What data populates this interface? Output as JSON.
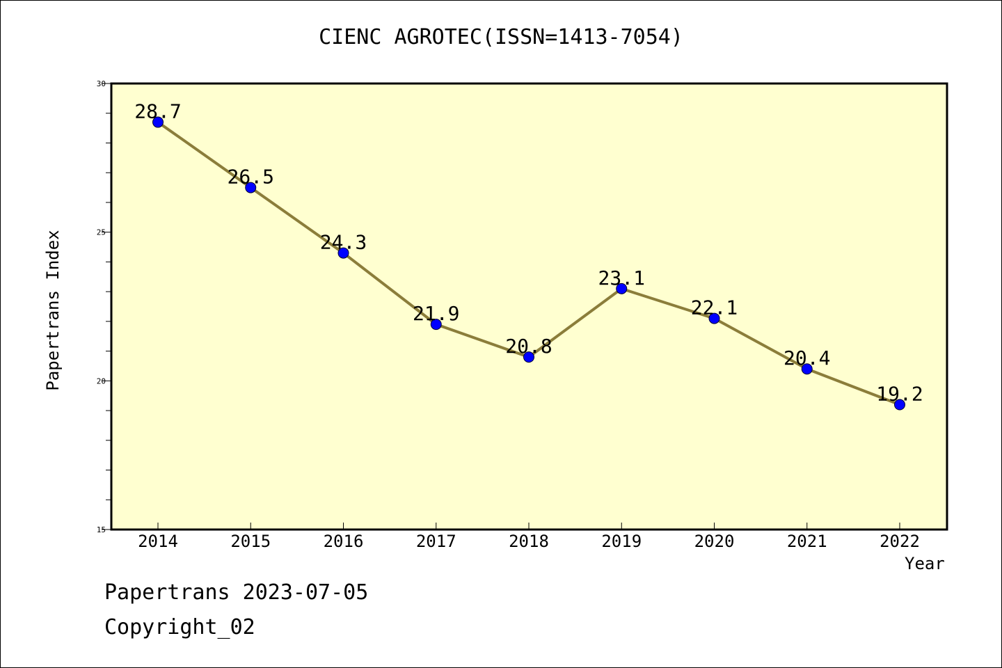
{
  "chart_data": {
    "type": "line",
    "title": "CIENC AGROTEC(ISSN=1413-7054)",
    "xlabel": "Year",
    "ylabel": "Papertrans Index",
    "categories": [
      "2014",
      "2015",
      "2016",
      "2017",
      "2018",
      "2019",
      "2020",
      "2021",
      "2022"
    ],
    "series": [
      {
        "values": [
          28.7,
          26.5,
          24.3,
          21.9,
          20.8,
          23.1,
          22.1,
          20.4,
          19.2
        ]
      }
    ],
    "data_labels": [
      "28.7",
      "26.5",
      "24.3",
      "21.9",
      "20.8",
      "23.1",
      "22.1",
      "20.4",
      "19.2"
    ],
    "ylim": [
      15,
      30
    ],
    "y_ticks": [
      "15",
      "20",
      "25",
      "30"
    ],
    "grid": false,
    "colors": {
      "plot_background": "#ffffd0",
      "line": "#8b7d3a",
      "marker": "#0000ff"
    }
  },
  "footer": {
    "line1": "Papertrans 2023-07-05",
    "line2": "Copyright_02"
  }
}
